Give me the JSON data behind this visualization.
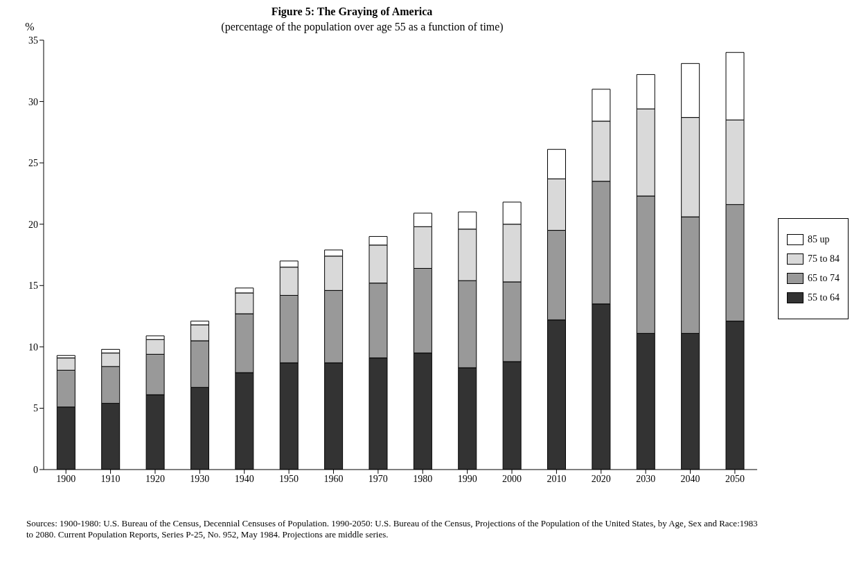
{
  "chart_data": {
    "type": "bar",
    "stacked": true,
    "title": "Figure 5:   The Graying of America",
    "subtitle": "(percentage of the population over age 55 as a function of time)",
    "ylabel": "%",
    "categories": [
      "1900",
      "1910",
      "1920",
      "1930",
      "1940",
      "1950",
      "1960",
      "1970",
      "1980",
      "1990",
      "2000",
      "2010",
      "2020",
      "2030",
      "2040",
      "2050"
    ],
    "series": [
      {
        "name": "55 to 64",
        "color": "#333333",
        "values": [
          5.1,
          5.4,
          6.1,
          6.7,
          7.9,
          8.7,
          8.7,
          9.1,
          9.5,
          8.3,
          8.8,
          12.2,
          13.5,
          11.1,
          11.1,
          12.1
        ]
      },
      {
        "name": "65 to 74",
        "color": "#999999",
        "values": [
          3.0,
          3.0,
          3.3,
          3.8,
          4.8,
          5.5,
          5.9,
          6.1,
          6.9,
          7.1,
          6.5,
          7.3,
          10.0,
          11.2,
          9.5,
          9.5
        ]
      },
      {
        "name": "75 to 84",
        "color": "#d9d9d9",
        "values": [
          1.0,
          1.1,
          1.2,
          1.3,
          1.7,
          2.3,
          2.8,
          3.1,
          3.4,
          4.2,
          4.7,
          4.2,
          4.9,
          7.1,
          8.1,
          6.9
        ]
      },
      {
        "name": "85 up",
        "color": "#ffffff",
        "values": [
          0.2,
          0.3,
          0.3,
          0.3,
          0.4,
          0.5,
          0.5,
          0.7,
          1.1,
          1.4,
          1.8,
          2.4,
          2.6,
          2.8,
          4.4,
          5.5
        ]
      }
    ],
    "ylim": [
      0,
      35
    ],
    "yticks": [
      0,
      5,
      10,
      15,
      20,
      25,
      30,
      35
    ],
    "grid": false,
    "legend": "right",
    "annotations": [
      "Sources: 1900-1980: U.S. Bureau of the Census,  Decennial Censuses of Population.  1990-2050: U.S. Bureau of the Census, Projections of the Population of the United States, by Age, Sex and Race:1983 to 2080.  Current Population Reports, Series P-25, No. 952, May 1984.  Projections are middle series."
    ]
  }
}
